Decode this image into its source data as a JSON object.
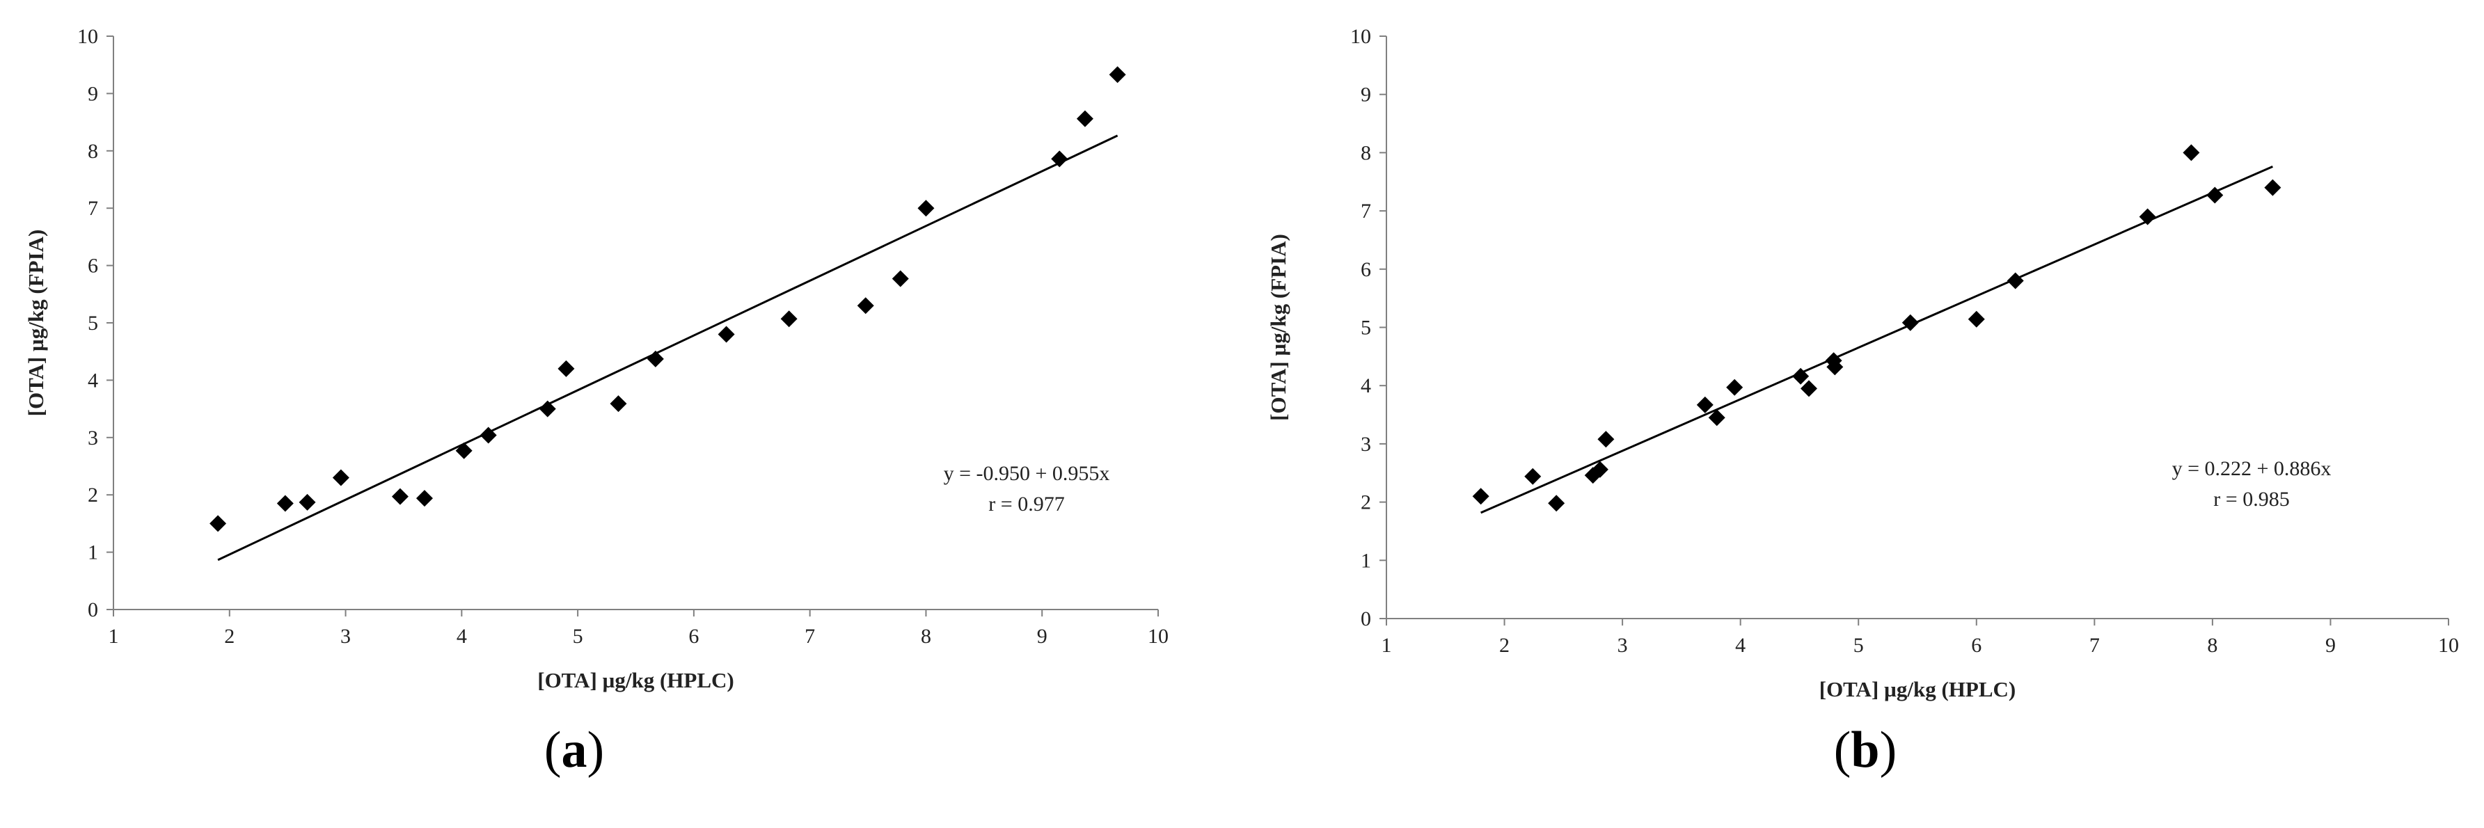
{
  "chart_data": [
    {
      "panel_label": "a",
      "type": "scatter",
      "xlabel": "[OTA] µg/kg (HPLC)",
      "ylabel": "[OTA] µg/kg (FPIA)",
      "xlim": [
        1,
        10
      ],
      "ylim": [
        0,
        10
      ],
      "xticks": [
        "1",
        "2",
        "3",
        "4",
        "5",
        "6",
        "7",
        "8",
        "9",
        "10"
      ],
      "yticks": [
        "0",
        "1",
        "2",
        "3",
        "4",
        "5",
        "6",
        "7",
        "8",
        "9",
        "10"
      ],
      "grid": false,
      "marker": "diamond",
      "color": "#000000",
      "points": [
        {
          "x": 1.9,
          "y": 1.5
        },
        {
          "x": 2.48,
          "y": 1.85
        },
        {
          "x": 2.67,
          "y": 1.87
        },
        {
          "x": 2.96,
          "y": 2.3
        },
        {
          "x": 3.47,
          "y": 1.97
        },
        {
          "x": 3.68,
          "y": 1.94
        },
        {
          "x": 4.02,
          "y": 2.77
        },
        {
          "x": 4.23,
          "y": 3.04
        },
        {
          "x": 4.74,
          "y": 3.5
        },
        {
          "x": 4.9,
          "y": 4.2
        },
        {
          "x": 5.35,
          "y": 3.59
        },
        {
          "x": 5.67,
          "y": 4.37
        },
        {
          "x": 6.28,
          "y": 4.8
        },
        {
          "x": 6.82,
          "y": 5.07
        },
        {
          "x": 7.48,
          "y": 5.3
        },
        {
          "x": 7.78,
          "y": 5.77
        },
        {
          "x": 8.0,
          "y": 7.0
        },
        {
          "x": 9.15,
          "y": 7.86
        },
        {
          "x": 9.37,
          "y": 8.56
        },
        {
          "x": 9.65,
          "y": 9.33
        }
      ],
      "regression": {
        "intercept": -0.95,
        "slope": 0.955,
        "x_start": 1.9,
        "x_end": 9.65
      },
      "annotation": {
        "line1": "y = -0.950 + 0.955x",
        "line2": "r = 0.977"
      }
    },
    {
      "panel_label": "b",
      "type": "scatter",
      "xlabel": "[OTA] µg/kg (HPLC)",
      "ylabel": "[OTA] µg/kg (FPIA)",
      "xlim": [
        1,
        10
      ],
      "ylim": [
        0,
        10
      ],
      "xticks": [
        "1",
        "2",
        "3",
        "4",
        "5",
        "6",
        "7",
        "8",
        "9",
        "10"
      ],
      "yticks": [
        "0",
        "1",
        "2",
        "3",
        "4",
        "5",
        "6",
        "7",
        "8",
        "9",
        "10"
      ],
      "grid": false,
      "marker": "diamond",
      "color": "#000000",
      "points": [
        {
          "x": 1.8,
          "y": 2.1
        },
        {
          "x": 2.24,
          "y": 2.44
        },
        {
          "x": 2.44,
          "y": 1.98
        },
        {
          "x": 2.75,
          "y": 2.46
        },
        {
          "x": 2.81,
          "y": 2.56
        },
        {
          "x": 2.86,
          "y": 3.08
        },
        {
          "x": 3.7,
          "y": 3.67
        },
        {
          "x": 3.8,
          "y": 3.45
        },
        {
          "x": 3.95,
          "y": 3.97
        },
        {
          "x": 4.51,
          "y": 4.16
        },
        {
          "x": 4.58,
          "y": 3.95
        },
        {
          "x": 4.79,
          "y": 4.43
        },
        {
          "x": 4.8,
          "y": 4.32
        },
        {
          "x": 5.44,
          "y": 5.08
        },
        {
          "x": 6.0,
          "y": 5.14
        },
        {
          "x": 6.33,
          "y": 5.8
        },
        {
          "x": 7.45,
          "y": 6.9
        },
        {
          "x": 7.82,
          "y": 8.0
        },
        {
          "x": 8.02,
          "y": 7.27
        },
        {
          "x": 8.51,
          "y": 7.4
        }
      ],
      "regression": {
        "intercept": 0.222,
        "slope": 0.886,
        "x_start": 1.8,
        "x_end": 8.51
      },
      "annotation": {
        "line1": "y = 0.222 + 0.886x",
        "line2": "r = 0.985"
      }
    }
  ]
}
